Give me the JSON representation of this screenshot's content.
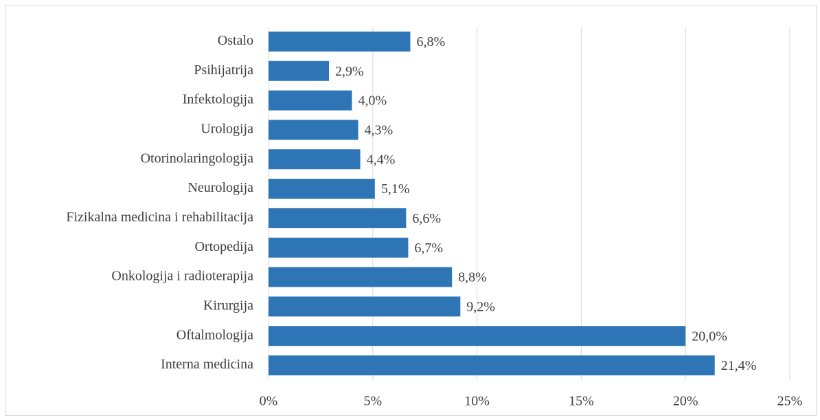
{
  "chart_data": {
    "type": "barh",
    "categories": [
      "Ostalo",
      "Psihijatrija",
      "Infektologija",
      "Urologija",
      "Otorinolaringologija",
      "Neurologija",
      "Fizikalna medicina i rehabilitacija",
      "Ortopedija",
      "Onkologija i radioterapija",
      "Kirurgija",
      "Oftalmologija",
      "Interna medicina"
    ],
    "values": [
      6.8,
      2.9,
      4.0,
      4.3,
      4.4,
      5.1,
      6.6,
      6.7,
      8.8,
      9.2,
      20.0,
      21.4
    ],
    "value_labels": [
      "6,8%",
      "2,9%",
      "4,0%",
      "4,3%",
      "4,4%",
      "5,1%",
      "6,6%",
      "6,7%",
      "8,8%",
      "9,2%",
      "20,0%",
      "21,4%"
    ],
    "color": "#2e75b6",
    "xlim": [
      0,
      25
    ],
    "xticks": [
      {
        "value": 0,
        "label": "0%"
      },
      {
        "value": 5,
        "label": "5%"
      },
      {
        "value": 10,
        "label": "10%"
      },
      {
        "value": 15,
        "label": "15%"
      },
      {
        "value": 20,
        "label": "20%"
      },
      {
        "value": 25,
        "label": "25%"
      }
    ],
    "grid": true
  }
}
